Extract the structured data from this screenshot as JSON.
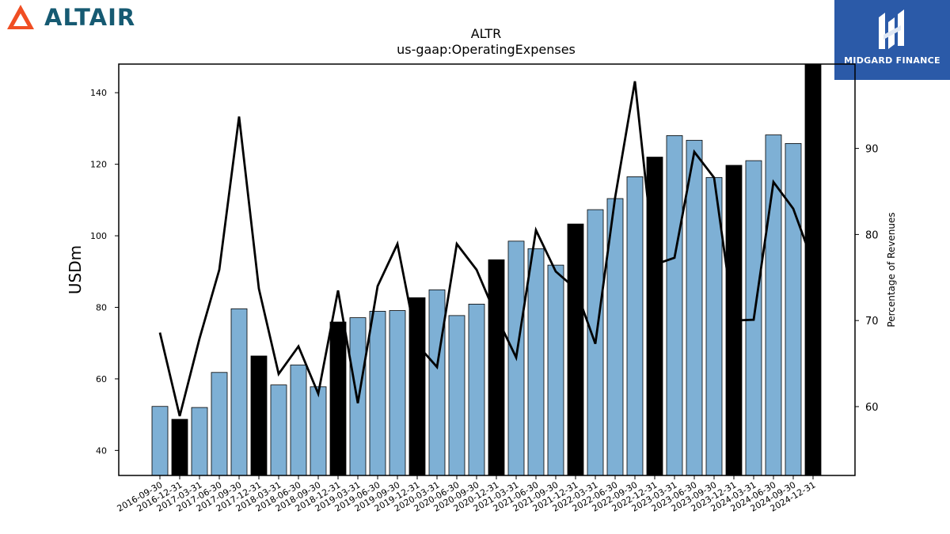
{
  "brand": {
    "company": "ALTAIR",
    "publisher": "MIDGARD FINANCE",
    "accent": "#f04e23",
    "company_color": "#165a72",
    "publisher_bg": "#2b5aa8"
  },
  "chart_data": {
    "type": "bar",
    "title": "ALTR",
    "subtitle": "us-gaap:OperatingExpenses",
    "ylabel": "USDm",
    "y2label": "Percentage of Revenues",
    "ylim": [
      33,
      148
    ],
    "y2lim": [
      52,
      99.8
    ],
    "yticks": [
      40,
      60,
      80,
      100,
      120,
      140
    ],
    "y2ticks": [
      60,
      70,
      80,
      90
    ],
    "grid": false,
    "categories": [
      "2016-09-30",
      "2016-12-31",
      "2017-03-31",
      "2017-06-30",
      "2017-09-30",
      "2017-12-31",
      "2018-03-31",
      "2018-06-30",
      "2018-09-30",
      "2018-12-31",
      "2019-03-31",
      "2019-06-30",
      "2019-09-30",
      "2019-12-31",
      "2020-03-31",
      "2020-06-30",
      "2020-09-30",
      "2020-12-31",
      "2021-03-31",
      "2021-06-30",
      "2021-09-30",
      "2021-12-31",
      "2022-03-31",
      "2022-06-30",
      "2022-09-30",
      "2022-12-31",
      "2023-03-31",
      "2023-06-30",
      "2023-09-30",
      "2023-12-31",
      "2024-03-31",
      "2024-06-30",
      "2024-09-30",
      "2024-12-31"
    ],
    "series": [
      {
        "values": [
          52.3,
          48.7,
          52.0,
          61.8,
          79.6,
          66.4,
          58.3,
          63.9,
          57.8,
          75.9,
          77.1,
          78.9,
          79.1,
          82.7,
          84.9,
          77.7,
          80.9,
          93.3,
          98.5,
          96.4,
          91.8,
          103.3,
          107.3,
          110.4,
          116.5,
          122.0,
          128.0,
          126.7,
          116.3,
          119.7,
          121.0,
          128.2,
          125.8,
          149.0
        ],
        "bar_colors": [
          "#7eb0d5",
          "#000000",
          "#7eb0d5",
          "#7eb0d5",
          "#7eb0d5",
          "#000000",
          "#7eb0d5",
          "#7eb0d5",
          "#7eb0d5",
          "#000000",
          "#7eb0d5",
          "#7eb0d5",
          "#7eb0d5",
          "#000000",
          "#7eb0d5",
          "#7eb0d5",
          "#7eb0d5",
          "#000000",
          "#7eb0d5",
          "#7eb0d5",
          "#7eb0d5",
          "#000000",
          "#7eb0d5",
          "#7eb0d5",
          "#7eb0d5",
          "#000000",
          "#7eb0d5",
          "#7eb0d5",
          "#7eb0d5",
          "#000000",
          "#7eb0d5",
          "#7eb0d5",
          "#7eb0d5",
          "#000000"
        ]
      },
      {
        "axis": "right",
        "type": "line",
        "color": "#000000",
        "values": [
          68.6,
          58.9,
          67.9,
          75.9,
          93.7,
          73.7,
          63.8,
          67.0,
          61.5,
          73.5,
          60.4,
          74.0,
          78.9,
          67.2,
          64.6,
          78.9,
          75.9,
          70.5,
          65.7,
          80.5,
          75.7,
          73.7,
          67.3,
          84.3,
          97.8,
          76.5,
          77.3,
          89.6,
          86.6,
          70.0,
          70.1,
          86.1,
          83.0,
          76.7
        ]
      }
    ]
  }
}
